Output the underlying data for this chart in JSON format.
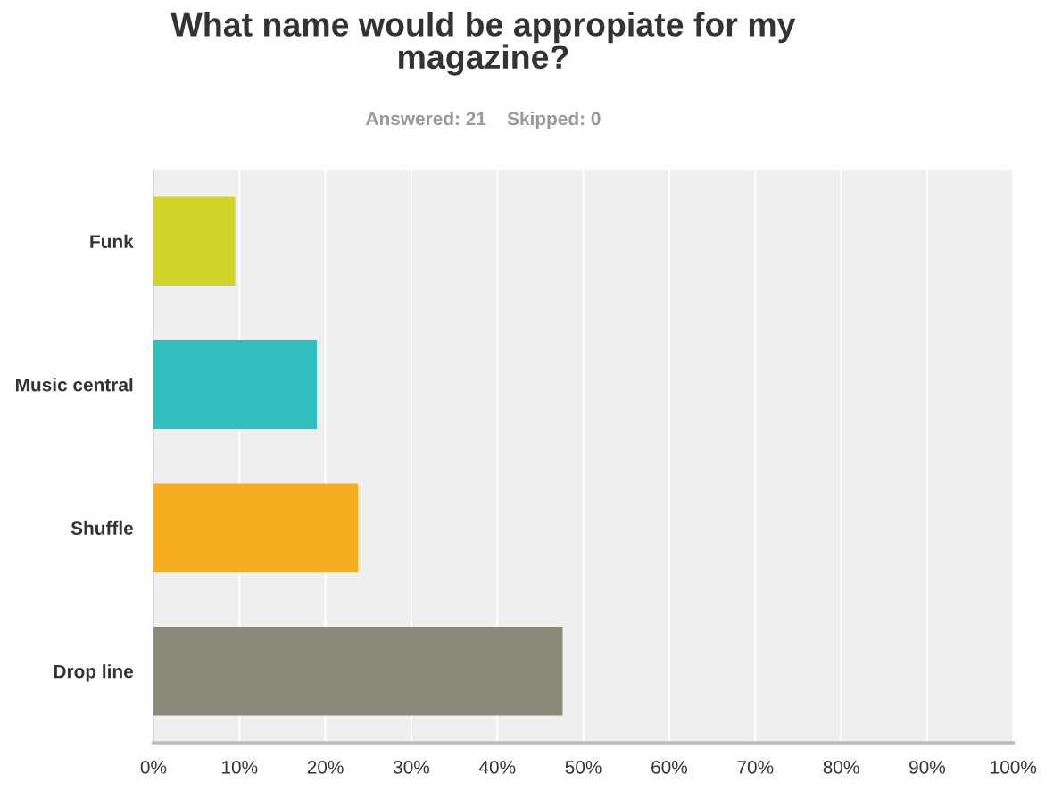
{
  "chart_data": {
    "type": "bar",
    "orientation": "horizontal",
    "title": "What name would be appropiate for my\nmagazine?",
    "subtitle": "Answered: 21    Skipped: 0",
    "categories": [
      "Funk",
      "Music central",
      "Shuffle",
      "Drop line"
    ],
    "values": [
      9.5,
      19.0,
      23.8,
      47.6
    ],
    "colors": [
      "#d0d42a",
      "#33bdbf",
      "#f6ae21",
      "#898a7a"
    ],
    "xlim": [
      0,
      100
    ],
    "xticks": [
      {
        "value": 0,
        "label": "0%"
      },
      {
        "value": 10,
        "label": "10%"
      },
      {
        "value": 20,
        "label": "20%"
      },
      {
        "value": 30,
        "label": "30%"
      },
      {
        "value": 40,
        "label": "40%"
      },
      {
        "value": 50,
        "label": "50%"
      },
      {
        "value": 60,
        "label": "60%"
      },
      {
        "value": 70,
        "label": "70%"
      },
      {
        "value": 80,
        "label": "80%"
      },
      {
        "value": 90,
        "label": "90%"
      },
      {
        "value": 100,
        "label": "100%"
      }
    ],
    "grid": "x"
  }
}
